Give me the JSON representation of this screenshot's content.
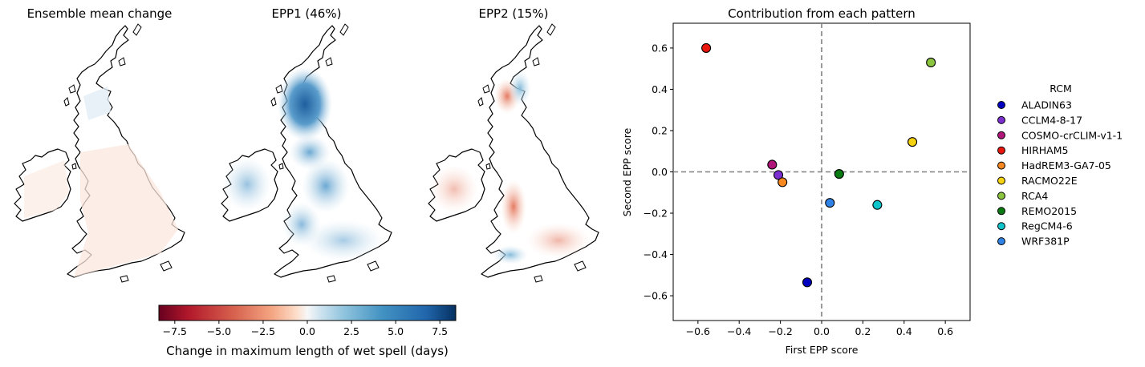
{
  "maps": {
    "panels": [
      {
        "title": "Ensemble mean change",
        "field": "mean"
      },
      {
        "title": "EPP1 (46%)",
        "field": "epp1"
      },
      {
        "title": "EPP2 (15%)",
        "field": "epp2"
      }
    ],
    "colorbar": {
      "label": "Change in maximum length of wet spell (days)",
      "range": [
        -8.4,
        8.4
      ],
      "ticks": [
        "−7.5",
        "−5.0",
        "−2.5",
        "0.0",
        "2.5",
        "5.0",
        "7.5"
      ],
      "tick_values": [
        -7.5,
        -5.0,
        -2.5,
        0.0,
        2.5,
        5.0,
        7.5
      ],
      "colormap": "RdBu"
    }
  },
  "chart_data": {
    "type": "scatter",
    "title": "Contribution from each pattern",
    "xlabel": "First EPP score",
    "ylabel": "Second EPP score",
    "xlim": [
      -0.72,
      0.72
    ],
    "ylim": [
      -0.72,
      0.72
    ],
    "xticks": [
      -0.6,
      -0.4,
      -0.2,
      0.0,
      0.2,
      0.4,
      0.6
    ],
    "yticks": [
      -0.6,
      -0.4,
      -0.2,
      0.0,
      0.2,
      0.4,
      0.6
    ],
    "xtick_labels": [
      "−0.6",
      "−0.4",
      "−0.2",
      "0.0",
      "0.2",
      "0.4",
      "0.6"
    ],
    "ytick_labels": [
      "−0.6",
      "−0.4",
      "−0.2",
      "0.0",
      "0.2",
      "0.4",
      "0.6"
    ],
    "reference_lines": {
      "x": 0.0,
      "y": 0.0,
      "style": "dashed"
    },
    "legend": {
      "title": "RCM",
      "placement": "outside-right"
    },
    "series": [
      {
        "name": "ALADIN63",
        "x": -0.07,
        "y": -0.535,
        "color": "#0000c0"
      },
      {
        "name": "CCLM4-8-17",
        "x": -0.21,
        "y": -0.015,
        "color": "#7b2fd0"
      },
      {
        "name": "COSMO-crCLIM-v1-1",
        "x": -0.24,
        "y": 0.035,
        "color": "#b0157a"
      },
      {
        "name": "HIRHAM5",
        "x": -0.56,
        "y": 0.6,
        "color": "#e8160c"
      },
      {
        "name": "HadREM3-GA7-05",
        "x": -0.19,
        "y": -0.05,
        "color": "#f7871f"
      },
      {
        "name": "RACMO22E",
        "x": 0.44,
        "y": 0.145,
        "color": "#f5d20e"
      },
      {
        "name": "RCA4",
        "x": 0.53,
        "y": 0.53,
        "color": "#8bc43f"
      },
      {
        "name": "REMO2015",
        "x": 0.085,
        "y": -0.01,
        "color": "#0a7a12"
      },
      {
        "name": "RegCM4-6",
        "x": 0.27,
        "y": -0.16,
        "color": "#10c4cc"
      },
      {
        "name": "WRF381P",
        "x": 0.04,
        "y": -0.15,
        "color": "#2f82e6"
      }
    ]
  }
}
